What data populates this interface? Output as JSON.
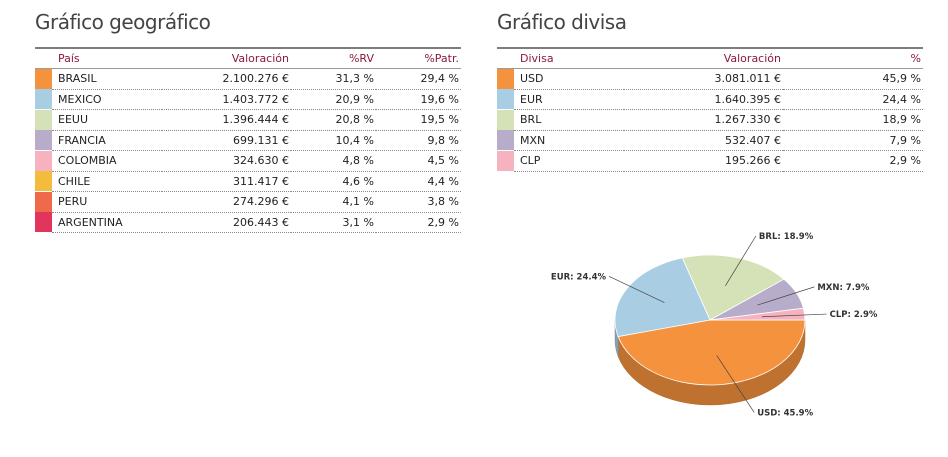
{
  "geo": {
    "title": "Gráfico geográfico",
    "headers": {
      "country": "País",
      "valuation": "Valoración",
      "rv": "%RV",
      "patr": "%Patr."
    },
    "rows": [
      {
        "name": "BRASIL",
        "value": "2.100.276 €",
        "rv": "31,3 %",
        "patr": "29,4 %",
        "color": "#f5923e"
      },
      {
        "name": "MEXICO",
        "value": "1.403.772 €",
        "rv": "20,9 %",
        "patr": "19,6 %",
        "color": "#a9cde3"
      },
      {
        "name": "EEUU",
        "value": "1.396.444 €",
        "rv": "20,8 %",
        "patr": "19,5 %",
        "color": "#d5e2b8"
      },
      {
        "name": "FRANCIA",
        "value": "699.131 €",
        "rv": "10,4 %",
        "patr": "9,8 %",
        "color": "#b7acc9"
      },
      {
        "name": "COLOMBIA",
        "value": "324.630 €",
        "rv": "4,8 %",
        "patr": "4,5 %",
        "color": "#f7b2bf"
      },
      {
        "name": "CHILE",
        "value": "311.417 €",
        "rv": "4,6 %",
        "patr": "4,4 %",
        "color": "#f3bc3d"
      },
      {
        "name": "PERU",
        "value": "274.296 €",
        "rv": "4,1 %",
        "patr": "3,8 %",
        "color": "#ef6a4a"
      },
      {
        "name": "ARGENTINA",
        "value": "206.443 €",
        "rv": "3,1 %",
        "patr": "2,9 %",
        "color": "#e2355e"
      }
    ]
  },
  "currency": {
    "title": "Gráfico divisa",
    "headers": {
      "currency": "Divisa",
      "valuation": "Valoración",
      "pct": "%"
    },
    "rows": [
      {
        "name": "USD",
        "value": "3.081.011 €",
        "pct": "45,9 %",
        "color": "#f5923e"
      },
      {
        "name": "EUR",
        "value": "1.640.395 €",
        "pct": "24,4 %",
        "color": "#a9cde3"
      },
      {
        "name": "BRL",
        "value": "1.267.330 €",
        "pct": "18,9 %",
        "color": "#d5e2b8"
      },
      {
        "name": "MXN",
        "value": "532.407 €",
        "pct": "7,9 %",
        "color": "#b7acc9"
      },
      {
        "name": "CLP",
        "value": "195.266 €",
        "pct": "2,9 %",
        "color": "#f7b2bf"
      }
    ]
  },
  "chart_data": {
    "type": "pie",
    "title": "",
    "categories": [
      "USD",
      "EUR",
      "BRL",
      "MXN",
      "CLP"
    ],
    "values": [
      45.9,
      24.4,
      18.9,
      7.9,
      2.9
    ],
    "labels": [
      "USD: 45.9%",
      "EUR: 24.4%",
      "BRL: 18.9%",
      "MXN: 7.9%",
      "CLP: 2.9%"
    ],
    "colors": [
      "#f5923e",
      "#a9cde3",
      "#d5e2b8",
      "#b7acc9",
      "#f7b2bf"
    ],
    "style": "3d"
  }
}
